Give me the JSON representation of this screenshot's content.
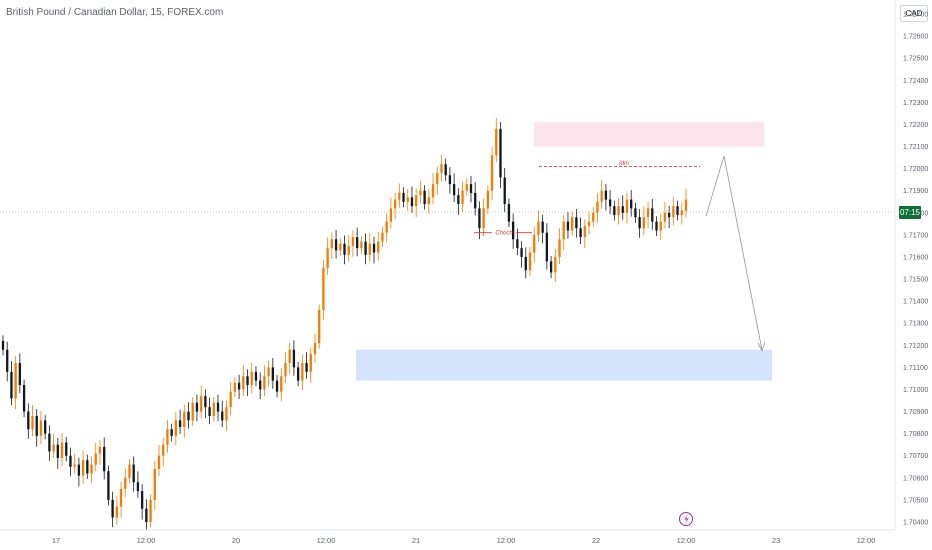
{
  "header": {
    "title": "British Pound / Canadian Dollar, 15, FOREX.com",
    "currency": "CAD"
  },
  "chart_data": {
    "type": "candlestick",
    "symbol": "GBPCAD",
    "y_ticks": [
      "1.72700",
      "1.72600",
      "1.72500",
      "1.72400",
      "1.72300",
      "1.72200",
      "1.72100",
      "1.72000",
      "1.71900",
      "1.71800",
      "1.71700",
      "1.71600",
      "1.71500",
      "1.71400",
      "1.71300",
      "1.71200",
      "1.71100",
      "1.71000",
      "1.70900",
      "1.70800",
      "1.70700",
      "1.70600",
      "1.70500",
      "1.70400"
    ],
    "ylim": [
      1.704,
      1.7275
    ],
    "x_ticks": [
      "17",
      "12:00",
      "20",
      "12:00",
      "21",
      "12:00",
      "22",
      "12:00",
      "23",
      "12:00"
    ],
    "current_price_label": "07:15",
    "current_price": 1.7185,
    "up_color": "#f57c00",
    "down_color": "#131722",
    "zones": [
      {
        "name": "supply-zone",
        "color": "#fce4ec",
        "y_top": 1.7221,
        "y_bottom": 1.721
      },
      {
        "name": "demand-zone",
        "color": "#d6e4fb",
        "y_top": 1.7118,
        "y_bottom": 1.7104
      }
    ],
    "annotations": [
      {
        "text": "Idm",
        "price": 1.7201
      },
      {
        "text": "Choch",
        "price": 1.7171
      }
    ],
    "closes": [
      1.7118,
      1.7108,
      1.7096,
      1.7112,
      1.7102,
      1.709,
      1.7082,
      1.7088,
      1.7079,
      1.7086,
      1.708,
      1.7072,
      1.7075,
      1.7069,
      1.7076,
      1.707,
      1.7065,
      1.7066,
      1.7061,
      1.7068,
      1.7062,
      1.7066,
      1.7071,
      1.7074,
      1.7063,
      1.705,
      1.7042,
      1.7047,
      1.7055,
      1.706,
      1.7066,
      1.7058,
      1.7054,
      1.7046,
      1.704,
      1.705,
      1.7064,
      1.707,
      1.7075,
      1.7082,
      1.7079,
      1.7086,
      1.7083,
      1.709,
      1.7086,
      1.7094,
      1.709,
      1.7097,
      1.7092,
      1.7088,
      1.7094,
      1.709,
      1.7086,
      1.7092,
      1.7099,
      1.7103,
      1.71,
      1.7106,
      1.7102,
      1.7108,
      1.7104,
      1.71,
      1.7106,
      1.711,
      1.7104,
      1.7099,
      1.7106,
      1.7112,
      1.7118,
      1.711,
      1.7104,
      1.7112,
      1.7108,
      1.7116,
      1.7121,
      1.7136,
      1.7155,
      1.7164,
      1.7168,
      1.7163,
      1.7166,
      1.7161,
      1.7165,
      1.7169,
      1.7164,
      1.7167,
      1.7161,
      1.7166,
      1.7162,
      1.7167,
      1.7171,
      1.7176,
      1.7182,
      1.7186,
      1.7189,
      1.7185,
      1.7187,
      1.7183,
      1.7188,
      1.719,
      1.7184,
      1.7187,
      1.7193,
      1.7198,
      1.7202,
      1.7197,
      1.7193,
      1.7188,
      1.7184,
      1.719,
      1.7193,
      1.7189,
      1.7182,
      1.7173,
      1.7182,
      1.719,
      1.7206,
      1.7218,
      1.7196,
      1.7184,
      1.7176,
      1.7168,
      1.7164,
      1.716,
      1.7154,
      1.7162,
      1.717,
      1.7176,
      1.7171,
      1.7158,
      1.7153,
      1.716,
      1.7168,
      1.7176,
      1.7172,
      1.7178,
      1.7173,
      1.7169,
      1.7174,
      1.7176,
      1.718,
      1.7185,
      1.719,
      1.7186,
      1.7183,
      1.7179,
      1.7183,
      1.718,
      1.7186,
      1.7182,
      1.7178,
      1.7173,
      1.7178,
      1.7182,
      1.7176,
      1.7172,
      1.7176,
      1.718,
      1.7178,
      1.7183,
      1.7179,
      1.7181,
      1.7186
    ]
  }
}
